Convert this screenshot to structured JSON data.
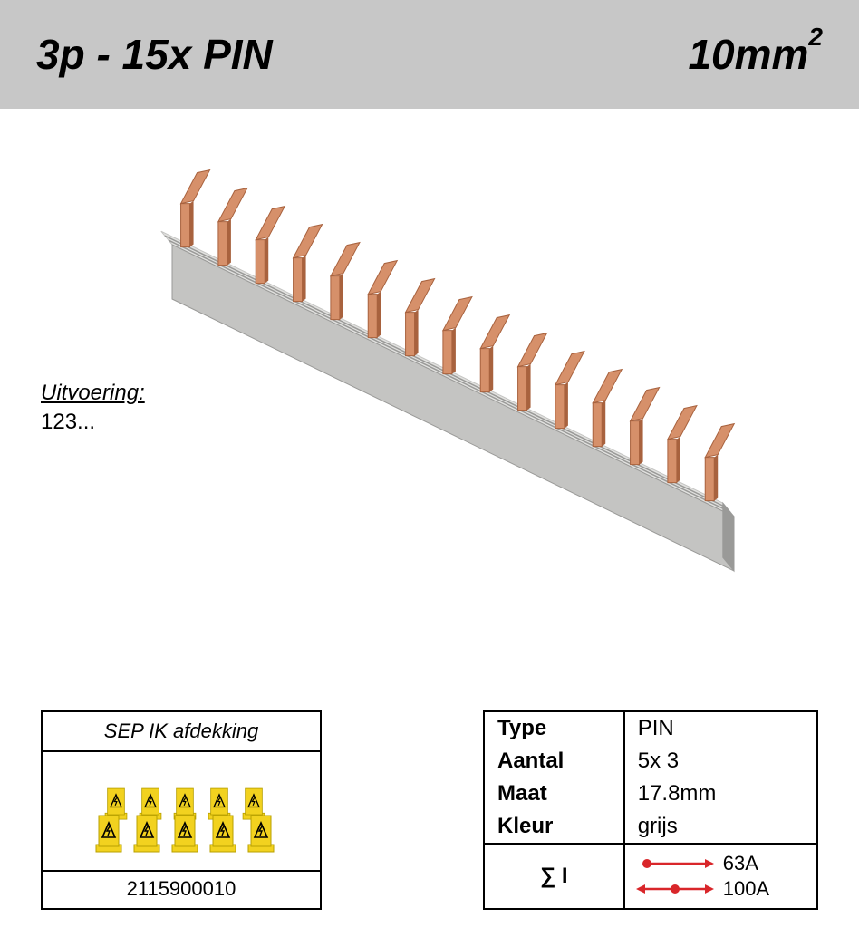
{
  "header": {
    "left": "3p - 15x PIN",
    "right_value": "10mm",
    "right_exponent": "2",
    "bg_color": "#c7c7c7"
  },
  "uitvoering": {
    "label": "Uitvoering:",
    "value": "123..."
  },
  "accessory_box": {
    "title": "SEP IK afdekking",
    "code": "2115900010",
    "cover_color": "#f2d21f",
    "cover_stroke": "#b8a000"
  },
  "specs": {
    "rows": [
      {
        "label": "Type",
        "value": "PIN"
      },
      {
        "label": "Aantal",
        "value": "5x 3"
      },
      {
        "label": "Maat",
        "value": "17.8mm"
      },
      {
        "label": "Kleur",
        "value": "grijs"
      }
    ],
    "sigma_label": "∑ I",
    "current_single": "63A",
    "current_double": "100A",
    "arrow_color": "#d9262a"
  },
  "product": {
    "bar_light": "#e2e2e0",
    "bar_mid": "#c4c4c2",
    "bar_dark": "#9a9a98",
    "pin_light": "#d6906a",
    "pin_dark": "#a8623e",
    "pin_count": 15
  }
}
